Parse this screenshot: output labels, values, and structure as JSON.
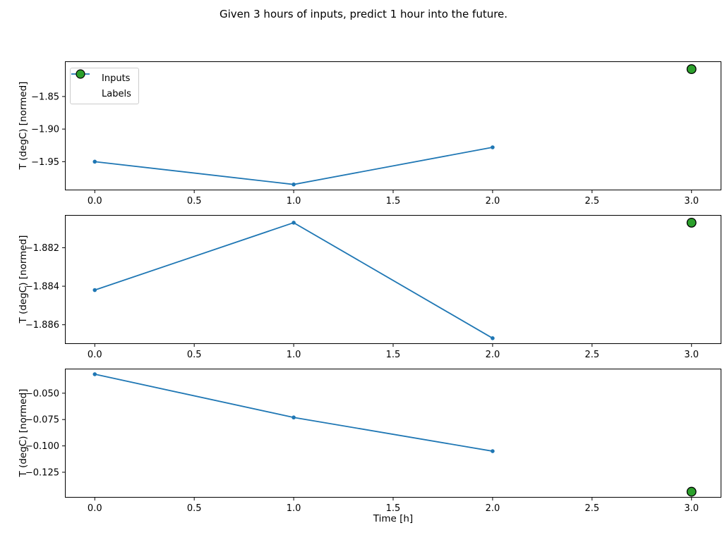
{
  "figure": {
    "title": "Given 3 hours of inputs, predict 1 hour into the future.",
    "xlabel": "Time [h]"
  },
  "colors": {
    "inputs_line": "#1f77b4",
    "labels_marker": "#2ca02c",
    "labels_marker_edge": "#000000",
    "axis": "#000000",
    "legend_border": "#cccccc"
  },
  "legend": {
    "position": "upper left",
    "entries": [
      {
        "label": "Inputs",
        "marker": "line-with-dot",
        "color": "#1f77b4"
      },
      {
        "label": "Labels",
        "marker": "circle",
        "color": "#2ca02c",
        "edge": "#000000"
      }
    ]
  },
  "chart_data": [
    {
      "type": "line",
      "ylabel": "T (degC) [normed]",
      "x": [
        0,
        1,
        2
      ],
      "series": [
        {
          "name": "Inputs",
          "values": [
            -1.95,
            -1.985,
            -1.928
          ],
          "color": "#1f77b4"
        }
      ],
      "label_point": {
        "name": "Labels",
        "x": 3,
        "value": -1.808,
        "color": "#2ca02c"
      },
      "xlim": [
        -0.15,
        3.15
      ],
      "ylim": [
        -1.994,
        -1.796
      ],
      "xticks": {
        "values": [
          0,
          0.5,
          1,
          1.5,
          2,
          2.5,
          3
        ],
        "labels": [
          "0.0",
          "0.5",
          "1.0",
          "1.5",
          "2.0",
          "2.5",
          "3.0"
        ]
      },
      "yticks": {
        "values": [
          -1.85,
          -1.9,
          -1.95
        ],
        "labels": [
          "−1.85",
          "−1.90",
          "−1.95"
        ]
      },
      "grid": false,
      "show_legend": true
    },
    {
      "type": "line",
      "ylabel": "T (degC) [normed]",
      "x": [
        0,
        1,
        2
      ],
      "series": [
        {
          "name": "Inputs",
          "values": [
            -1.8842,
            -1.8807,
            -1.8867
          ],
          "color": "#1f77b4"
        }
      ],
      "label_point": {
        "name": "Labels",
        "x": 3,
        "value": -1.8807,
        "color": "#2ca02c"
      },
      "xlim": [
        -0.15,
        3.15
      ],
      "ylim": [
        -1.887,
        -1.8803
      ],
      "xticks": {
        "values": [
          0,
          0.5,
          1,
          1.5,
          2,
          2.5,
          3
        ],
        "labels": [
          "0.0",
          "0.5",
          "1.0",
          "1.5",
          "2.0",
          "2.5",
          "3.0"
        ]
      },
      "yticks": {
        "values": [
          -1.882,
          -1.884,
          -1.886
        ],
        "labels": [
          "−1.882",
          "−1.884",
          "−1.886"
        ]
      },
      "grid": false,
      "show_legend": false
    },
    {
      "type": "line",
      "ylabel": "T (degC) [normed]",
      "x": [
        0,
        1,
        2
      ],
      "series": [
        {
          "name": "Inputs",
          "values": [
            -0.032,
            -0.073,
            -0.105
          ],
          "color": "#1f77b4"
        }
      ],
      "label_point": {
        "name": "Labels",
        "x": 3,
        "value": -0.1435,
        "color": "#2ca02c"
      },
      "xlim": [
        -0.15,
        3.15
      ],
      "ylim": [
        -0.1491,
        -0.0267
      ],
      "xticks": {
        "values": [
          0,
          0.5,
          1,
          1.5,
          2,
          2.5,
          3
        ],
        "labels": [
          "0.0",
          "0.5",
          "1.0",
          "1.5",
          "2.0",
          "2.5",
          "3.0"
        ]
      },
      "yticks": {
        "values": [
          -0.05,
          -0.075,
          -0.1,
          -0.125
        ],
        "labels": [
          "−0.050",
          "−0.075",
          "−0.100",
          "−0.125"
        ]
      },
      "grid": false,
      "show_legend": false
    }
  ]
}
